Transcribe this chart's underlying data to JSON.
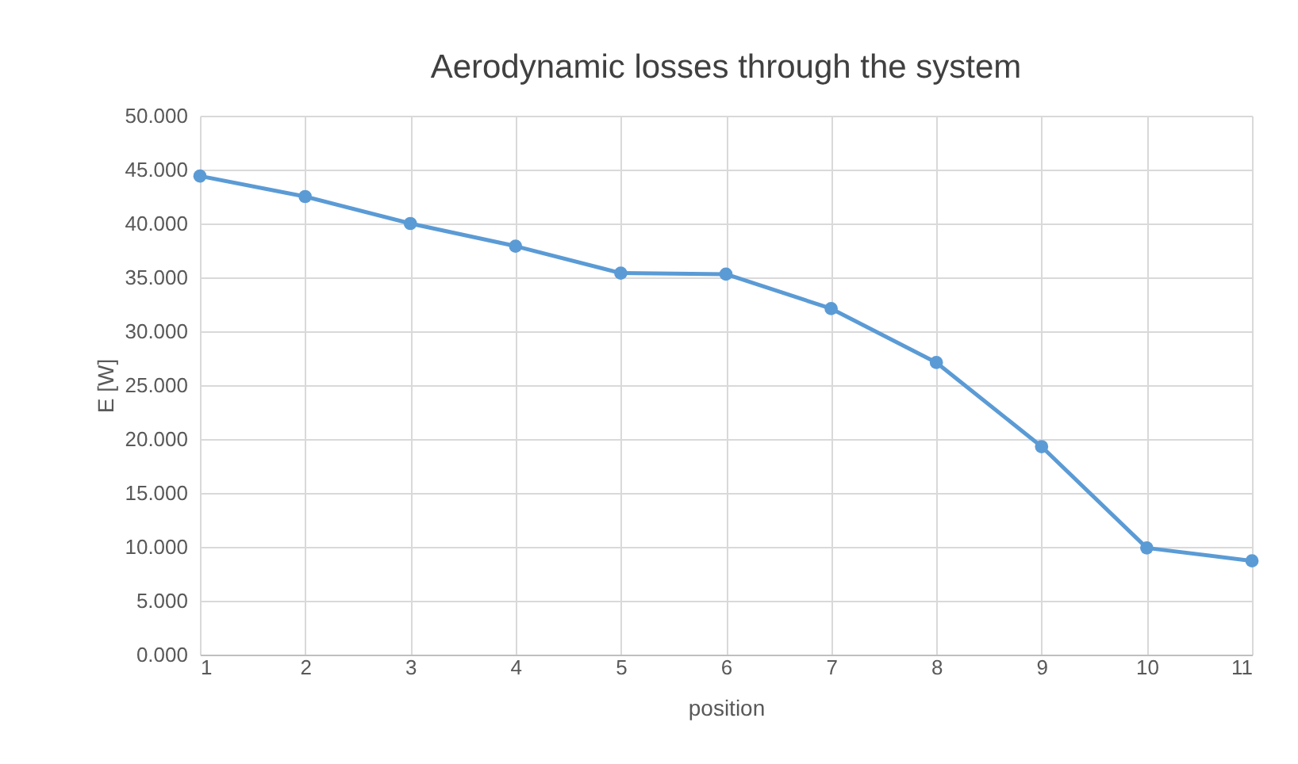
{
  "chart_data": {
    "type": "line",
    "title": "Aerodynamic losses through the system",
    "xlabel": "position",
    "ylabel": "E [W]",
    "x": [
      1,
      2,
      3,
      4,
      5,
      6,
      7,
      8,
      9,
      10,
      11
    ],
    "series": [
      {
        "color": "#5b9bd5",
        "values": [
          44.4,
          42.5,
          40.0,
          37.9,
          35.4,
          35.3,
          32.1,
          27.1,
          19.3,
          9.9,
          8.7
        ]
      }
    ],
    "xlim": [
      1,
      11
    ],
    "xticks": [
      1,
      2,
      3,
      4,
      5,
      6,
      7,
      8,
      9,
      10,
      11
    ],
    "ylim": [
      0,
      50
    ],
    "yticks": [
      {
        "value": 0,
        "label": "0.000"
      },
      {
        "value": 5,
        "label": "5.000"
      },
      {
        "value": 10,
        "label": "10.000"
      },
      {
        "value": 15,
        "label": "15.000"
      },
      {
        "value": 20,
        "label": "20.000"
      },
      {
        "value": 25,
        "label": "25.000"
      },
      {
        "value": 30,
        "label": "30.000"
      },
      {
        "value": 35,
        "label": "35.000"
      },
      {
        "value": 40,
        "label": "40.000"
      },
      {
        "value": 45,
        "label": "45.000"
      },
      {
        "value": 50,
        "label": "50.000"
      }
    ],
    "grid": true,
    "marker": "circle",
    "line_style": "solid"
  }
}
